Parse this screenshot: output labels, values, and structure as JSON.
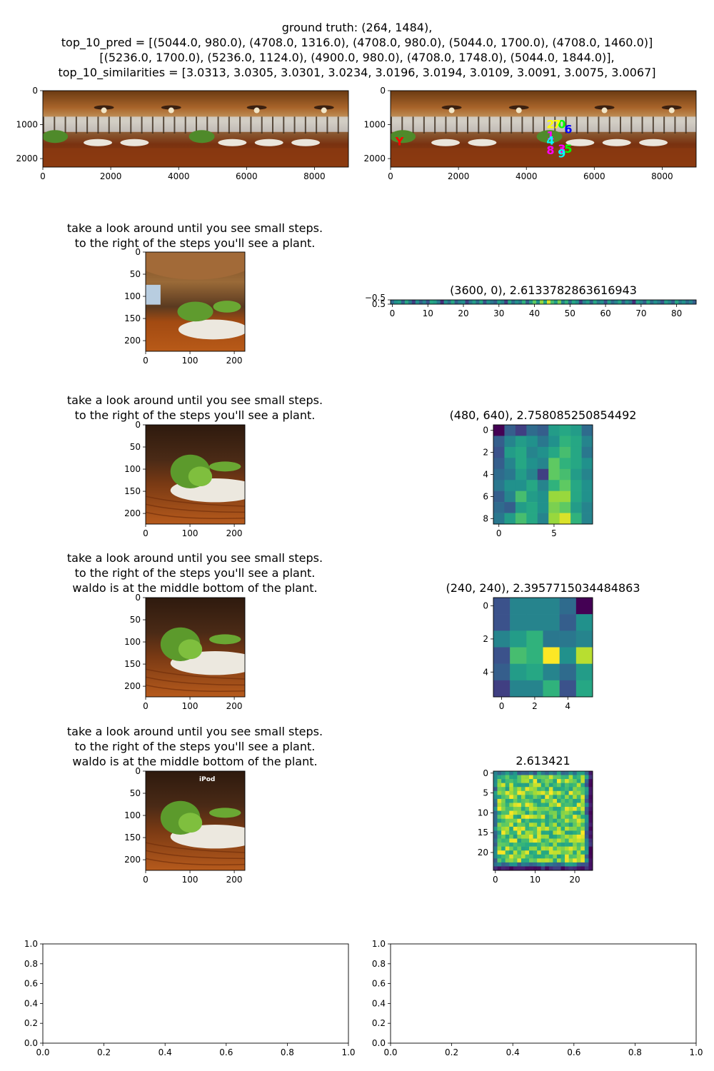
{
  "figure": {
    "title_lines": [
      "ground truth: (264, 1484),",
      "top_10_pred = [(5044.0, 980.0), (4708.0, 1316.0), (4708.0, 980.0), (5044.0, 1700.0), (4708.0, 1460.0)]",
      "[(5236.0, 1700.0), (5236.0, 1124.0), (4900.0, 980.0), (4708.0, 1748.0), (5044.0, 1844.0)],",
      "top_10_similarities = [3.0313, 3.0305, 3.0301, 3.0234, 3.0196, 3.0194, 3.0109, 3.0091, 3.0075, 3.0067]"
    ]
  },
  "chart_data": [
    {
      "id": "panorama-original",
      "type": "image",
      "content": "restaurant panorama",
      "xlim": [
        0,
        9000
      ],
      "ylim": [
        2250,
        0
      ],
      "xticks": [
        0,
        2000,
        4000,
        6000,
        8000
      ],
      "yticks": [
        0,
        1000,
        2000
      ]
    },
    {
      "id": "panorama-predictions",
      "type": "image",
      "content": "restaurant panorama with prediction markers",
      "xlim": [
        0,
        9000
      ],
      "ylim": [
        2250,
        0
      ],
      "xticks": [
        0,
        2000,
        4000,
        6000,
        8000
      ],
      "yticks": [
        0,
        1000,
        2000
      ],
      "markers": [
        {
          "label": "0",
          "x": 5044,
          "y": 980,
          "color": "#00ff00"
        },
        {
          "label": "1",
          "x": 4708,
          "y": 1316,
          "color": "#ff00ff"
        },
        {
          "label": "2",
          "x": 4708,
          "y": 980,
          "color": "#ffff00"
        },
        {
          "label": "3",
          "x": 5044,
          "y": 1700,
          "color": "#ff00ff"
        },
        {
          "label": "4",
          "x": 4708,
          "y": 1460,
          "color": "#00ffff"
        },
        {
          "label": "5",
          "x": 5236,
          "y": 1700,
          "color": "#00ff00"
        },
        {
          "label": "6",
          "x": 5236,
          "y": 1124,
          "color": "#0000ff"
        },
        {
          "label": "7",
          "x": 4900,
          "y": 980,
          "color": "#ffff00"
        },
        {
          "label": "8",
          "x": 4708,
          "y": 1748,
          "color": "#ff00ff"
        },
        {
          "label": "9",
          "x": 5044,
          "y": 1844,
          "color": "#00ffff"
        },
        {
          "label": "Y",
          "x": 264,
          "y": 1484,
          "color": "#ff0000"
        }
      ]
    },
    {
      "id": "view-1",
      "type": "image",
      "title_lines": [
        "take a look around until you see small steps.",
        "to the right of the steps you'll see a plant."
      ],
      "content": "view with plant left",
      "xlim": [
        0,
        224
      ],
      "ylim": [
        224,
        0
      ],
      "xticks": [
        0,
        100,
        200
      ],
      "yticks": [
        0,
        50,
        100,
        150,
        200
      ]
    },
    {
      "id": "heatmap-1",
      "type": "heatmap",
      "title": "(3600, 0), 2.6133782863616943",
      "rows": 1,
      "cols": 86,
      "xticks": [
        0,
        10,
        20,
        30,
        40,
        50,
        60,
        70,
        80
      ],
      "yticks": [
        "−0.5",
        "0.5"
      ],
      "values": [
        [
          0.35,
          0.5,
          0.55,
          0.3,
          0.6,
          0.4,
          0.2,
          0.5,
          0.3,
          0.45,
          0.25,
          0.6,
          0.55,
          0.4,
          0.15,
          0.5,
          0.35,
          0.6,
          0.3,
          0.45,
          0.5,
          0.2,
          0.4,
          0.55,
          0.35,
          0.6,
          0.25,
          0.5,
          0.4,
          0.3,
          0.55,
          0.45,
          0.2,
          0.6,
          0.35,
          0.5,
          0.4,
          0.65,
          0.3,
          0.55,
          0.75,
          0.5,
          0.85,
          0.6,
          0.95,
          0.7,
          0.55,
          0.8,
          0.45,
          0.65,
          0.35,
          0.6,
          0.5,
          0.2,
          0.45,
          0.55,
          0.3,
          0.6,
          0.4,
          0.5,
          0.25,
          0.55,
          0.35,
          0.45,
          0.6,
          0.3,
          0.5,
          0.4,
          0.15,
          0.55,
          0.45,
          0.3,
          0.6,
          0.35,
          0.5,
          0.4,
          0.25,
          0.55,
          0.45,
          0.3,
          0.6,
          0.4,
          0.5,
          0.35,
          0.45,
          0.3
        ]
      ]
    },
    {
      "id": "view-2",
      "type": "image",
      "title_lines": [
        "take a look around until you see small steps.",
        "to the right of the steps you'll see a plant."
      ],
      "content": "view with plant center",
      "xlim": [
        0,
        224
      ],
      "ylim": [
        224,
        0
      ],
      "xticks": [
        0,
        100,
        200
      ],
      "yticks": [
        0,
        50,
        100,
        150,
        200
      ]
    },
    {
      "id": "heatmap-2",
      "type": "heatmap",
      "title": "(480, 640), 2.758085250854492",
      "rows": 9,
      "cols": 9,
      "xticks": [
        0,
        5
      ],
      "yticks": [
        0,
        2,
        4,
        6,
        8
      ],
      "values": [
        [
          0.0,
          0.3,
          0.2,
          0.35,
          0.3,
          0.55,
          0.6,
          0.55,
          0.35
        ],
        [
          0.3,
          0.45,
          0.55,
          0.5,
          0.4,
          0.5,
          0.65,
          0.6,
          0.45
        ],
        [
          0.25,
          0.55,
          0.6,
          0.45,
          0.5,
          0.6,
          0.7,
          0.6,
          0.4
        ],
        [
          0.3,
          0.45,
          0.6,
          0.5,
          0.45,
          0.75,
          0.65,
          0.6,
          0.5
        ],
        [
          0.35,
          0.4,
          0.55,
          0.45,
          0.2,
          0.75,
          0.7,
          0.55,
          0.45
        ],
        [
          0.4,
          0.5,
          0.5,
          0.6,
          0.45,
          0.65,
          0.75,
          0.6,
          0.5
        ],
        [
          0.3,
          0.45,
          0.7,
          0.55,
          0.5,
          0.85,
          0.85,
          0.6,
          0.5
        ],
        [
          0.35,
          0.3,
          0.55,
          0.6,
          0.5,
          0.8,
          0.75,
          0.55,
          0.45
        ],
        [
          0.4,
          0.55,
          0.7,
          0.6,
          0.45,
          0.85,
          0.95,
          0.65,
          0.45
        ]
      ]
    },
    {
      "id": "view-3",
      "type": "image",
      "title_lines": [
        "take a look around until you see small steps.",
        "to the right of the steps you'll see a plant.",
        "waldo is at the middle bottom of the plant."
      ],
      "content": "view with plant closer",
      "xlim": [
        0,
        224
      ],
      "ylim": [
        224,
        0
      ],
      "xticks": [
        0,
        100,
        200
      ],
      "yticks": [
        0,
        50,
        100,
        150,
        200
      ]
    },
    {
      "id": "heatmap-3",
      "type": "heatmap",
      "title": "(240, 240), 2.3957715034484863",
      "rows": 6,
      "cols": 6,
      "xticks": [
        0,
        2,
        4
      ],
      "yticks": [
        0,
        2,
        4
      ],
      "values": [
        [
          0.25,
          0.45,
          0.45,
          0.45,
          0.35,
          0.0
        ],
        [
          0.25,
          0.45,
          0.45,
          0.45,
          0.3,
          0.5
        ],
        [
          0.45,
          0.55,
          0.65,
          0.4,
          0.4,
          0.45
        ],
        [
          0.25,
          0.7,
          0.65,
          1.0,
          0.5,
          0.9
        ],
        [
          0.3,
          0.55,
          0.6,
          0.45,
          0.35,
          0.55
        ],
        [
          0.2,
          0.45,
          0.45,
          0.65,
          0.25,
          0.6
        ]
      ]
    },
    {
      "id": "view-4",
      "type": "image",
      "title_lines": [
        "take a look around until you see small steps.",
        "to the right of the steps you'll see a plant.",
        "waldo is at the middle bottom of the plant."
      ],
      "content": "view with plant and iPod label",
      "overlay_text": "iPod",
      "xlim": [
        0,
        224
      ],
      "ylim": [
        224,
        0
      ],
      "xticks": [
        0,
        100,
        200
      ],
      "yticks": [
        0,
        50,
        100,
        150,
        200
      ]
    },
    {
      "id": "heatmap-4",
      "type": "heatmap",
      "title": "2.613421",
      "rows": 25,
      "cols": 25,
      "xticks": [
        0,
        10,
        20
      ],
      "yticks": [
        0,
        5,
        10,
        15,
        20
      ],
      "generator": "noise"
    },
    {
      "id": "empty-left",
      "type": "empty",
      "xlim": [
        0,
        1
      ],
      "ylim": [
        0,
        1
      ],
      "xticks": [
        "0.0",
        "0.2",
        "0.4",
        "0.6",
        "0.8",
        "1.0"
      ],
      "yticks": [
        "0.0",
        "0.2",
        "0.4",
        "0.6",
        "0.8",
        "1.0"
      ]
    },
    {
      "id": "empty-right",
      "type": "empty",
      "xlim": [
        0,
        1
      ],
      "ylim": [
        0,
        1
      ],
      "xticks": [
        "0.0",
        "0.2",
        "0.4",
        "0.6",
        "0.8",
        "1.0"
      ],
      "yticks": [
        "0.0",
        "0.2",
        "0.4",
        "0.6",
        "0.8",
        "1.0"
      ]
    }
  ]
}
